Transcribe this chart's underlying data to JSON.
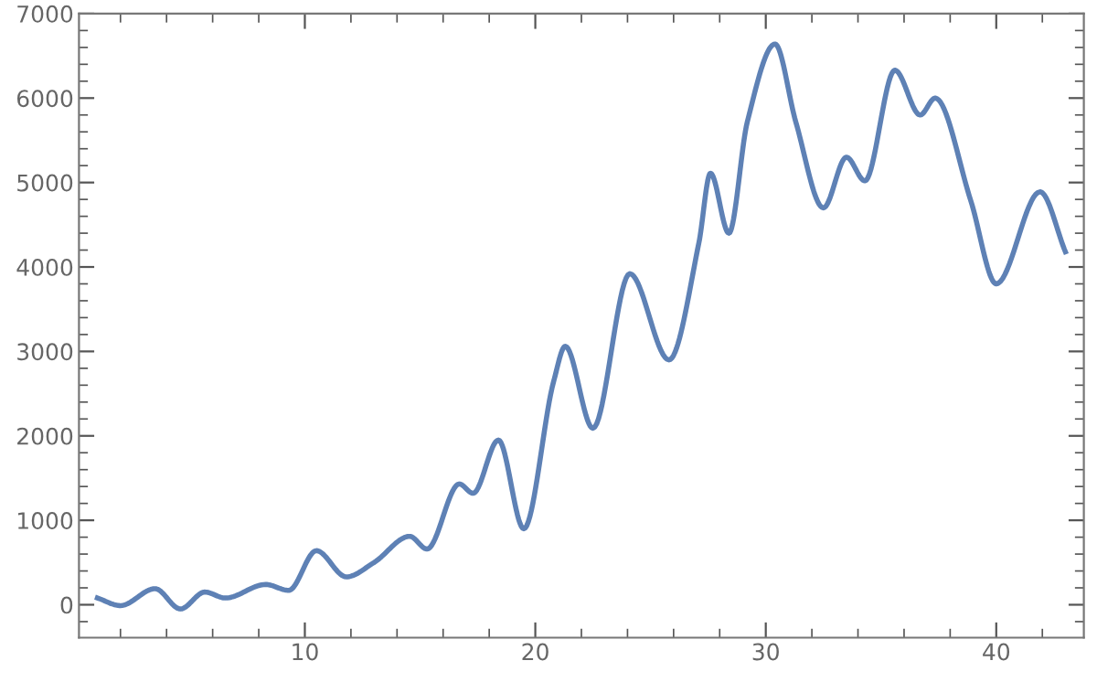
{
  "chart_data": {
    "type": "line",
    "line_style": "solid",
    "marker": "none",
    "grid": false,
    "xlim": [
      0.2,
      43.8
    ],
    "ylim": [
      -390,
      7000
    ],
    "xticks": [
      {
        "value": 2,
        "label": null
      },
      {
        "value": 4,
        "label": null
      },
      {
        "value": 6,
        "label": null
      },
      {
        "value": 8,
        "label": null
      },
      10,
      {
        "value": 12,
        "label": null
      },
      {
        "value": 14,
        "label": null
      },
      {
        "value": 16,
        "label": null
      },
      {
        "value": 18,
        "label": null
      },
      20,
      {
        "value": 22,
        "label": null
      },
      {
        "value": 24,
        "label": null
      },
      {
        "value": 26,
        "label": null
      },
      {
        "value": 28,
        "label": null
      },
      30,
      {
        "value": 32,
        "label": null
      },
      {
        "value": 34,
        "label": null
      },
      {
        "value": 36,
        "label": null
      },
      {
        "value": 38,
        "label": null
      },
      40,
      {
        "value": 42,
        "label": null
      }
    ],
    "yticks": [
      {
        "value": -200,
        "label": null
      },
      0,
      {
        "value": 200,
        "label": null
      },
      {
        "value": 400,
        "label": null
      },
      {
        "value": 600,
        "label": null
      },
      {
        "value": 800,
        "label": null
      },
      1000,
      {
        "value": 1200,
        "label": null
      },
      {
        "value": 1400,
        "label": null
      },
      {
        "value": 1600,
        "label": null
      },
      {
        "value": 1800,
        "label": null
      },
      2000,
      {
        "value": 2200,
        "label": null
      },
      {
        "value": 2400,
        "label": null
      },
      {
        "value": 2600,
        "label": null
      },
      {
        "value": 2800,
        "label": null
      },
      3000,
      {
        "value": 3200,
        "label": null
      },
      {
        "value": 3400,
        "label": null
      },
      {
        "value": 3600,
        "label": null
      },
      {
        "value": 3800,
        "label": null
      },
      4000,
      {
        "value": 4200,
        "label": null
      },
      {
        "value": 4400,
        "label": null
      },
      {
        "value": 4600,
        "label": null
      },
      {
        "value": 4800,
        "label": null
      },
      5000,
      {
        "value": 5200,
        "label": null
      },
      {
        "value": 5400,
        "label": null
      },
      {
        "value": 5600,
        "label": null
      },
      {
        "value": 5800,
        "label": null
      },
      6000,
      {
        "value": 6200,
        "label": null
      },
      {
        "value": 6400,
        "label": null
      },
      {
        "value": 6600,
        "label": null
      },
      {
        "value": 6800,
        "label": null
      },
      7000
    ],
    "series": [
      {
        "color": "#5e81b5",
        "x": [
          1,
          2,
          3.5,
          4.6,
          5.66,
          6.55,
          8.3,
          9.3,
          10.5,
          11.8,
          13,
          14.55,
          15.3,
          16.7,
          17.3,
          18.4,
          19.5,
          20.8,
          21.3,
          22.5,
          24.1,
          25.8,
          27.1,
          27.6,
          28.4,
          29.2,
          30.4,
          31.3,
          32.5,
          33.5,
          34.3,
          35.6,
          36.7,
          37.35,
          38.9,
          40,
          41.9,
          43
        ],
        "values": [
          80,
          -10,
          190,
          -50,
          150,
          80,
          240,
          170,
          640,
          330,
          500,
          810,
          660,
          1430,
          1320,
          1950,
          900,
          2650,
          3060,
          2090,
          3920,
          2900,
          4290,
          5110,
          4400,
          5720,
          6640,
          5720,
          4700,
          5300,
          5020,
          6330,
          5800,
          6000,
          4780,
          3800,
          4890,
          4180
        ]
      }
    ]
  }
}
